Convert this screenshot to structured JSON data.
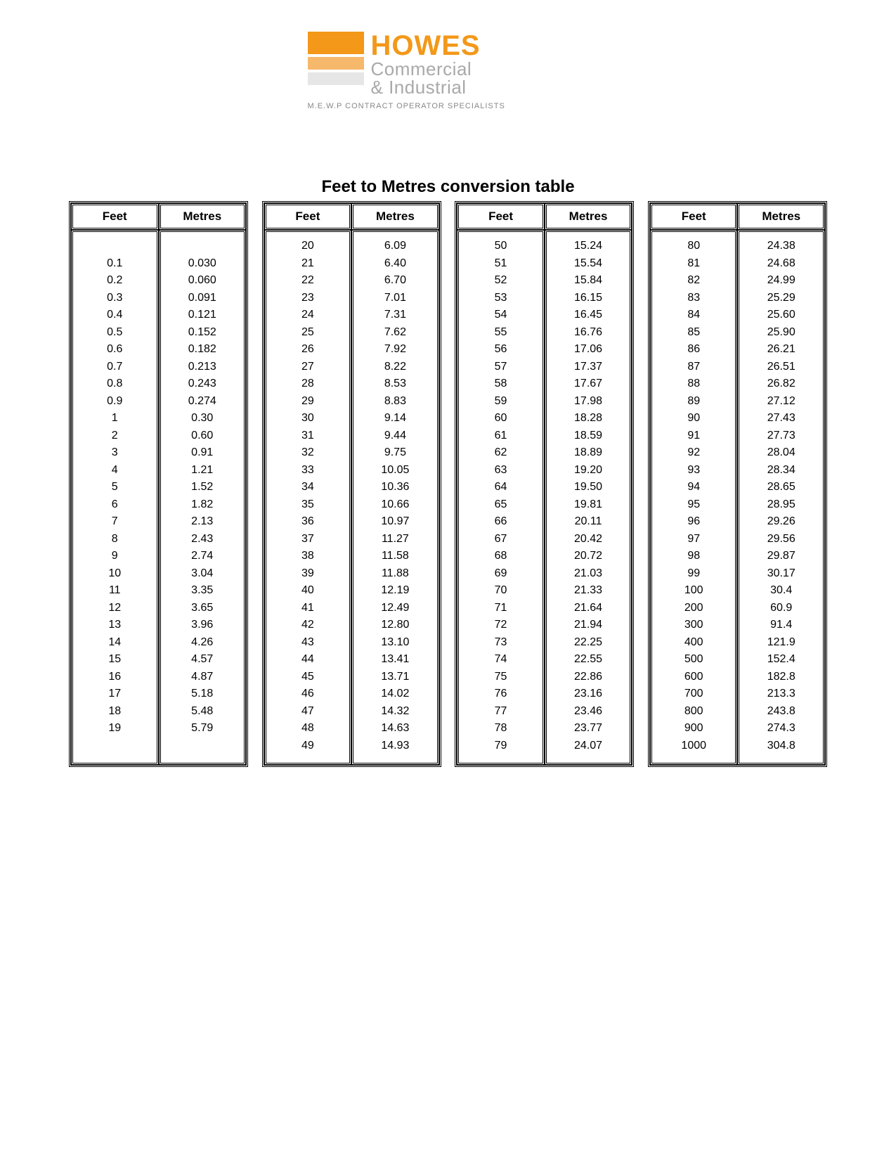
{
  "logo": {
    "brand": "HOWES",
    "line1": "Commercial",
    "line2": "& Industrial",
    "tagline": "M.E.W.P CONTRACT OPERATOR SPECIALISTS",
    "colors": {
      "brand_orange": "#f39819",
      "bar2": "#f6b86b",
      "bar3": "#e6e6e6",
      "grey_text": "#a9a9a9",
      "tagline_grey": "#888888"
    }
  },
  "title": "Feet to Metres conversion table",
  "table": {
    "type": "table",
    "header_feet": "Feet",
    "header_metres": "Metres",
    "background_color": "#ffffff",
    "border_color": "#000000",
    "font_family": "Verdana",
    "header_fontsize": 17,
    "cell_fontsize": 16,
    "columns": [
      {
        "leading_blank": true,
        "rows": [
          [
            "0.1",
            "0.030"
          ],
          [
            "0.2",
            "0.060"
          ],
          [
            "0.3",
            "0.091"
          ],
          [
            "0.4",
            "0.121"
          ],
          [
            "0.5",
            "0.152"
          ],
          [
            "0.6",
            "0.182"
          ],
          [
            "0.7",
            "0.213"
          ],
          [
            "0.8",
            "0.243"
          ],
          [
            "0.9",
            "0.274"
          ],
          [
            "1",
            "0.30"
          ],
          [
            "2",
            "0.60"
          ],
          [
            "3",
            "0.91"
          ],
          [
            "4",
            "1.21"
          ],
          [
            "5",
            "1.52"
          ],
          [
            "6",
            "1.82"
          ],
          [
            "7",
            "2.13"
          ],
          [
            "8",
            "2.43"
          ],
          [
            "9",
            "2.74"
          ],
          [
            "10",
            "3.04"
          ],
          [
            "11",
            "3.35"
          ],
          [
            "12",
            "3.65"
          ],
          [
            "13",
            "3.96"
          ],
          [
            "14",
            "4.26"
          ],
          [
            "15",
            "4.57"
          ],
          [
            "16",
            "4.87"
          ],
          [
            "17",
            "5.18"
          ],
          [
            "18",
            "5.48"
          ],
          [
            "19",
            "5.79"
          ]
        ]
      },
      {
        "leading_blank": false,
        "rows": [
          [
            "20",
            "6.09"
          ],
          [
            "21",
            "6.40"
          ],
          [
            "22",
            "6.70"
          ],
          [
            "23",
            "7.01"
          ],
          [
            "24",
            "7.31"
          ],
          [
            "25",
            "7.62"
          ],
          [
            "26",
            "7.92"
          ],
          [
            "27",
            "8.22"
          ],
          [
            "28",
            "8.53"
          ],
          [
            "29",
            "8.83"
          ],
          [
            "30",
            "9.14"
          ],
          [
            "31",
            "9.44"
          ],
          [
            "32",
            "9.75"
          ],
          [
            "33",
            "10.05"
          ],
          [
            "34",
            "10.36"
          ],
          [
            "35",
            "10.66"
          ],
          [
            "36",
            "10.97"
          ],
          [
            "37",
            "11.27"
          ],
          [
            "38",
            "11.58"
          ],
          [
            "39",
            "11.88"
          ],
          [
            "40",
            "12.19"
          ],
          [
            "41",
            "12.49"
          ],
          [
            "42",
            "12.80"
          ],
          [
            "43",
            "13.10"
          ],
          [
            "44",
            "13.41"
          ],
          [
            "45",
            "13.71"
          ],
          [
            "46",
            "14.02"
          ],
          [
            "47",
            "14.32"
          ],
          [
            "48",
            "14.63"
          ],
          [
            "49",
            "14.93"
          ]
        ]
      },
      {
        "leading_blank": false,
        "rows": [
          [
            "50",
            "15.24"
          ],
          [
            "51",
            "15.54"
          ],
          [
            "52",
            "15.84"
          ],
          [
            "53",
            "16.15"
          ],
          [
            "54",
            "16.45"
          ],
          [
            "55",
            "16.76"
          ],
          [
            "56",
            "17.06"
          ],
          [
            "57",
            "17.37"
          ],
          [
            "58",
            "17.67"
          ],
          [
            "59",
            "17.98"
          ],
          [
            "60",
            "18.28"
          ],
          [
            "61",
            "18.59"
          ],
          [
            "62",
            "18.89"
          ],
          [
            "63",
            "19.20"
          ],
          [
            "64",
            "19.50"
          ],
          [
            "65",
            "19.81"
          ],
          [
            "66",
            "20.11"
          ],
          [
            "67",
            "20.42"
          ],
          [
            "68",
            "20.72"
          ],
          [
            "69",
            "21.03"
          ],
          [
            "70",
            "21.33"
          ],
          [
            "71",
            "21.64"
          ],
          [
            "72",
            "21.94"
          ],
          [
            "73",
            "22.25"
          ],
          [
            "74",
            "22.55"
          ],
          [
            "75",
            "22.86"
          ],
          [
            "76",
            "23.16"
          ],
          [
            "77",
            "23.46"
          ],
          [
            "78",
            "23.77"
          ],
          [
            "79",
            "24.07"
          ]
        ]
      },
      {
        "leading_blank": false,
        "rows": [
          [
            "80",
            "24.38"
          ],
          [
            "81",
            "24.68"
          ],
          [
            "82",
            "24.99"
          ],
          [
            "83",
            "25.29"
          ],
          [
            "84",
            "25.60"
          ],
          [
            "85",
            "25.90"
          ],
          [
            "86",
            "26.21"
          ],
          [
            "87",
            "26.51"
          ],
          [
            "88",
            "26.82"
          ],
          [
            "89",
            "27.12"
          ],
          [
            "90",
            "27.43"
          ],
          [
            "91",
            "27.73"
          ],
          [
            "92",
            "28.04"
          ],
          [
            "93",
            "28.34"
          ],
          [
            "94",
            "28.65"
          ],
          [
            "95",
            "28.95"
          ],
          [
            "96",
            "29.26"
          ],
          [
            "97",
            "29.56"
          ],
          [
            "98",
            "29.87"
          ],
          [
            "99",
            "30.17"
          ],
          [
            "100",
            "30.4"
          ],
          [
            "200",
            "60.9"
          ],
          [
            "300",
            "91.4"
          ],
          [
            "400",
            "121.9"
          ],
          [
            "500",
            "152.4"
          ],
          [
            "600",
            "182.8"
          ],
          [
            "700",
            "213.3"
          ],
          [
            "800",
            "243.8"
          ],
          [
            "900",
            "274.3"
          ],
          [
            "1000",
            "304.8"
          ]
        ]
      }
    ]
  }
}
